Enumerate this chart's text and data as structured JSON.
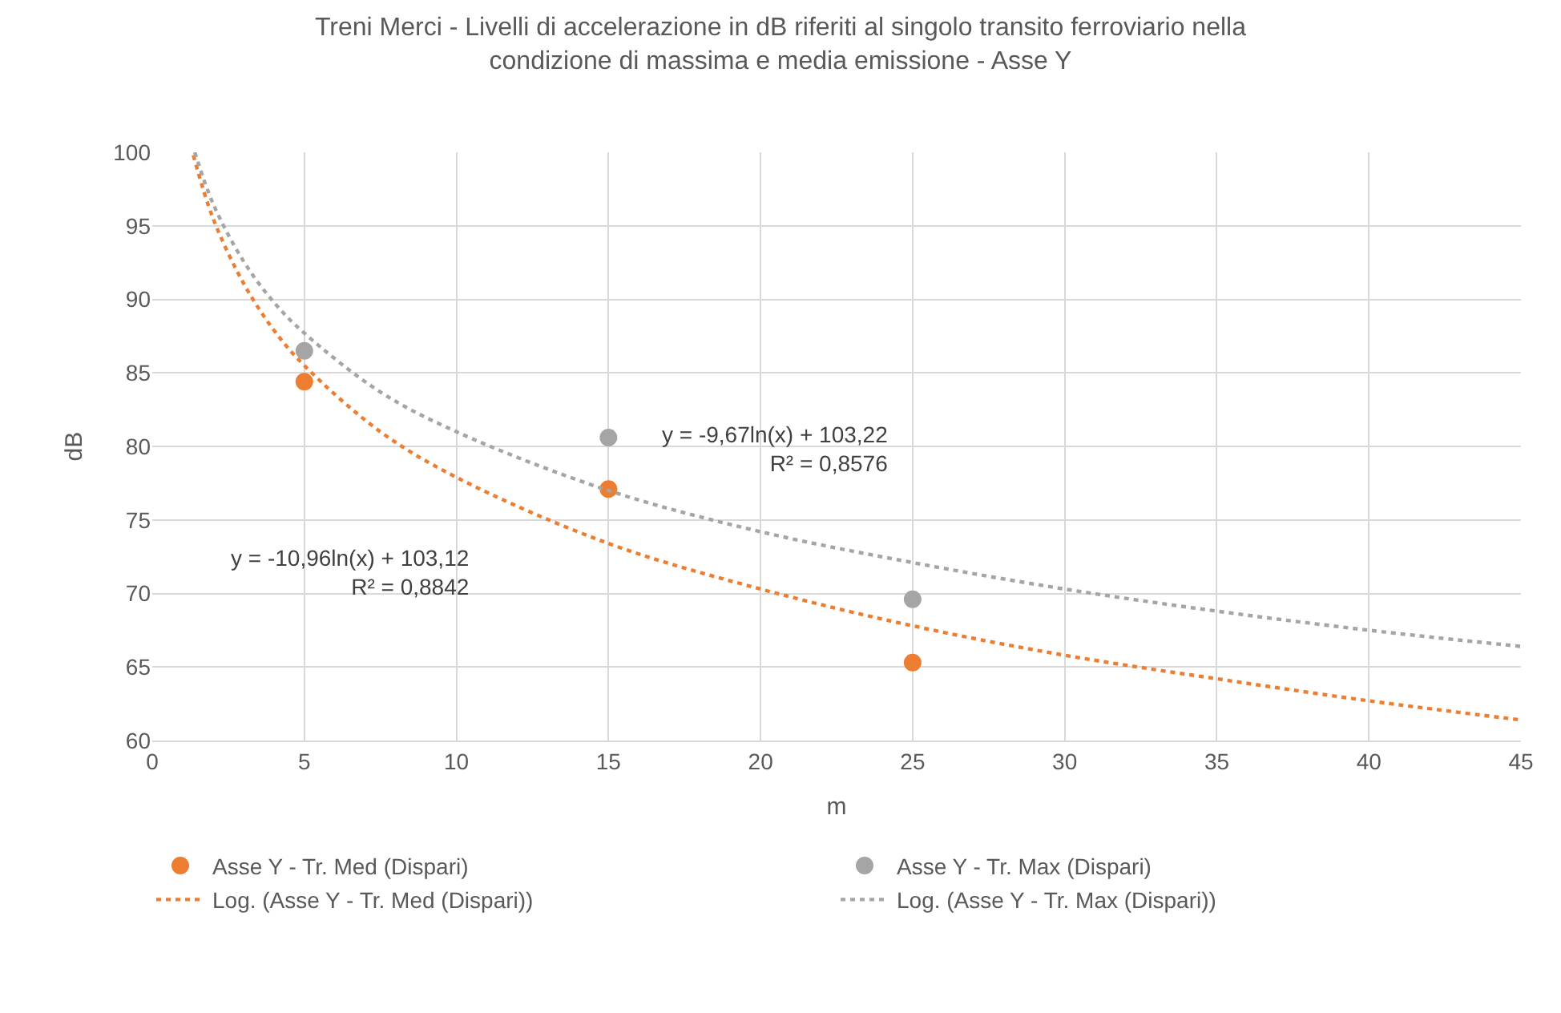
{
  "chart_data": {
    "type": "scatter",
    "title": "Treni Merci - Livelli di accelerazione in dB riferiti al singolo transito ferroviario nella\ncondizione di massima e media emissione - Asse Y",
    "xlabel": "m",
    "ylabel": "dB",
    "xlim": [
      0,
      45
    ],
    "xticks": [
      0,
      5,
      10,
      15,
      20,
      25,
      30,
      35,
      40,
      45
    ],
    "ylim": [
      60,
      100
    ],
    "yticks": [
      60,
      65,
      70,
      75,
      80,
      85,
      90,
      95,
      100
    ],
    "grid": true,
    "legend": "bottom",
    "series": [
      {
        "name": "Asse Y - Tr. Med (Dispari)",
        "color": "#ed7d31",
        "marker": "circle",
        "x": [
          5,
          15,
          25
        ],
        "values": [
          84.4,
          77.1,
          65.3
        ]
      },
      {
        "name": "Asse Y - Tr. Max (Dispari)",
        "color": "#a5a5a5",
        "marker": "circle",
        "x": [
          5,
          15,
          25
        ],
        "values": [
          86.5,
          80.6,
          69.6
        ]
      },
      {
        "name": "Log. (Asse Y - Tr. Med (Dispari))",
        "color": "#ed7d31",
        "type": "line",
        "marker": "none",
        "line_style": "dotted",
        "x": [
          1.35,
          2,
          3,
          4,
          5,
          7.5,
          10,
          15,
          20,
          25,
          30,
          35,
          40,
          45
        ],
        "values": [
          99.8,
          95.5,
          91.1,
          87.9,
          85.5,
          81.0,
          77.9,
          73.4,
          70.3,
          67.8,
          65.8,
          64.2,
          62.7,
          61.4
        ]
      },
      {
        "name": "Log. (Asse Y - Tr. Max (Dispari))",
        "color": "#a5a5a5",
        "type": "line",
        "marker": "none",
        "line_style": "dotted",
        "x": [
          1.4,
          2,
          3,
          4,
          5,
          7.5,
          10,
          15,
          20,
          25,
          30,
          35,
          40,
          45
        ],
        "values": [
          100.0,
          96.5,
          92.6,
          89.8,
          87.7,
          83.7,
          81.0,
          77.0,
          74.2,
          72.1,
          70.3,
          68.8,
          67.5,
          66.4
        ]
      }
    ],
    "annotations": [
      "y = -10,96ln(x) + 103,12\nR² = 0,8842",
      "y = -9,67ln(x) + 103,22\nR² = 0,8576"
    ]
  }
}
